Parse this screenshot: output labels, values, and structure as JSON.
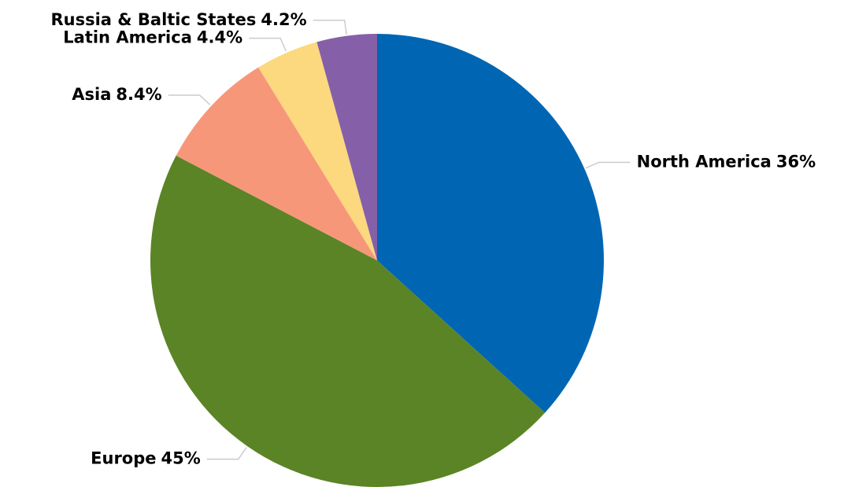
{
  "chart_data": {
    "type": "pie",
    "categories": [
      "North America",
      "Europe",
      "Asia",
      "Latin America",
      "Russia & Baltic States"
    ],
    "values": [
      36,
      45,
      8.4,
      4.4,
      4.2
    ],
    "value_labels": [
      "36%",
      "45%",
      "8.4%",
      "4.4%",
      "4.2%"
    ],
    "colors": [
      "#0066b3",
      "#5b8426",
      "#f7977a",
      "#fcd87f",
      "#8560a8"
    ]
  }
}
